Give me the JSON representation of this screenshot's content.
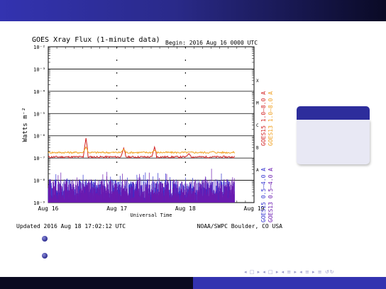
{
  "slide": {
    "colors": {
      "accent": "#2d2d9c",
      "bar_dark": "#0a0a25"
    }
  },
  "chart_data": {
    "type": "line",
    "title": "GOES Xray Flux (1-minute data)",
    "begin_label": "Begin:  2016 Aug 16 0000 UTC",
    "ylabel": "Watts m⁻²",
    "xlabel": "Universal Time",
    "x_ticks": [
      "Aug 16",
      "Aug 17",
      "Aug 18",
      "Aug 19"
    ],
    "y_ticks": [
      "10⁻²",
      "10⁻³",
      "10⁻⁴",
      "10⁻⁵",
      "10⁻⁶",
      "10⁻⁷",
      "10⁻⁸",
      "10⁻⁹"
    ],
    "y_log_range": [
      -9,
      -2
    ],
    "x_range_days": [
      0,
      3
    ],
    "flare_classes": [
      "X",
      "M",
      "C",
      "B",
      "A"
    ],
    "footer_left": "Updated 2016 Aug 18 17:02:12 UTC",
    "footer_right": "NOAA/SWPC Boulder, CO USA",
    "series": [
      {
        "name": "GOES15 1.0–8.0 A",
        "color": "#d22020",
        "baseline_log": -6.95,
        "spikes": [
          {
            "x": 0.55,
            "y": -6.1
          },
          {
            "x": 1.1,
            "y": -6.55
          },
          {
            "x": 1.55,
            "y": -6.5
          },
          {
            "x": 2.05,
            "y": -6.8
          }
        ]
      },
      {
        "name": "GOES13 1.0–8.0 A",
        "color": "#f0a020",
        "baseline_log": -6.75,
        "spikes": [
          {
            "x": 0.55,
            "y": -6.5
          },
          {
            "x": 1.1,
            "y": -6.6
          },
          {
            "x": 1.55,
            "y": -6.65
          },
          {
            "x": 2.4,
            "y": -6.7
          }
        ]
      },
      {
        "name": "GOES15 0.5–4.0 A",
        "color": "#3030d0",
        "baseline_log": -8.85,
        "spikes": [
          {
            "x": 0.55,
            "y": -8.0
          }
        ]
      },
      {
        "name": "GOES13 0.5–4.0 A",
        "color": "#6a1ab0",
        "baseline_log": -8.85,
        "spikes": [
          {
            "x": 0.55,
            "y": -8.4
          },
          {
            "x": 1.55,
            "y": -8.5
          },
          {
            "x": 2.05,
            "y": -8.6
          }
        ]
      }
    ],
    "grid": true,
    "legend": "right-vertical"
  },
  "bullets": [
    "",
    ""
  ],
  "nav_symbols": "◂ □ ▸ ◂ □ ▸ ◂ ≡ ▸ ◂ ≡ ▸ ≡ ↺↻"
}
